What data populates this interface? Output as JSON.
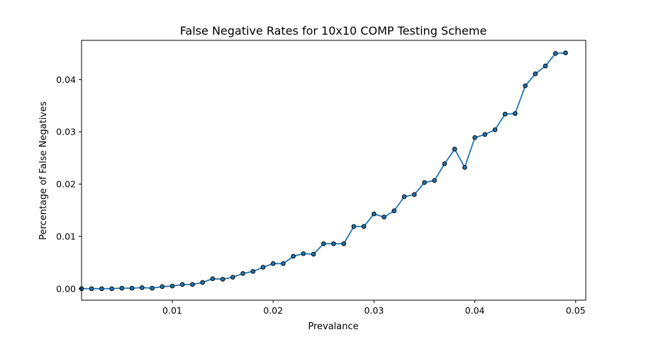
{
  "chart_data": {
    "type": "line",
    "title": "False Negative Rates for 10x10 COMP Testing Scheme",
    "xlabel": "Prevalance",
    "ylabel": "Percentage of False Negatives",
    "xlim": [
      0.001,
      0.051
    ],
    "ylim": [
      -0.0022,
      0.0475
    ],
    "xticks": [
      0.01,
      0.02,
      0.03,
      0.04,
      0.05
    ],
    "xtick_labels": [
      "0.01",
      "0.02",
      "0.03",
      "0.04",
      "0.05"
    ],
    "yticks": [
      0.0,
      0.01,
      0.02,
      0.03,
      0.04
    ],
    "ytick_labels": [
      "0.00",
      "0.01",
      "0.02",
      "0.03",
      "0.04"
    ],
    "grid": false,
    "line_color": "#1f77b4",
    "marker_face_color": "#1f77b4",
    "marker_edge_color": "#000000",
    "x": [
      0.001,
      0.002,
      0.003,
      0.004,
      0.005,
      0.006,
      0.007,
      0.008,
      0.009,
      0.01,
      0.011,
      0.012,
      0.013,
      0.014,
      0.015,
      0.016,
      0.017,
      0.018,
      0.019,
      0.02,
      0.021,
      0.022,
      0.023,
      0.024,
      0.025,
      0.026,
      0.027,
      0.028,
      0.029,
      0.03,
      0.031,
      0.032,
      0.033,
      0.034,
      0.035,
      0.036,
      0.037,
      0.038,
      0.039,
      0.04,
      0.041,
      0.042,
      0.043,
      0.044,
      0.045,
      0.046,
      0.047,
      0.048,
      0.049
    ],
    "y": [
      0.0,
      0.0,
      0.0,
      0.0,
      0.0001,
      0.0001,
      0.0002,
      0.0001,
      0.0004,
      0.0005,
      0.0008,
      0.0008,
      0.0012,
      0.0019,
      0.0018,
      0.0022,
      0.0029,
      0.0033,
      0.0041,
      0.0048,
      0.0048,
      0.0062,
      0.0067,
      0.0066,
      0.0086,
      0.0086,
      0.0086,
      0.0119,
      0.0119,
      0.0143,
      0.0137,
      0.0149,
      0.0176,
      0.018,
      0.0203,
      0.0207,
      0.0239,
      0.0267,
      0.0232,
      0.0289,
      0.0295,
      0.0304,
      0.0334,
      0.0335,
      0.0388,
      0.0411,
      0.0426,
      0.045,
      0.0451
    ]
  }
}
